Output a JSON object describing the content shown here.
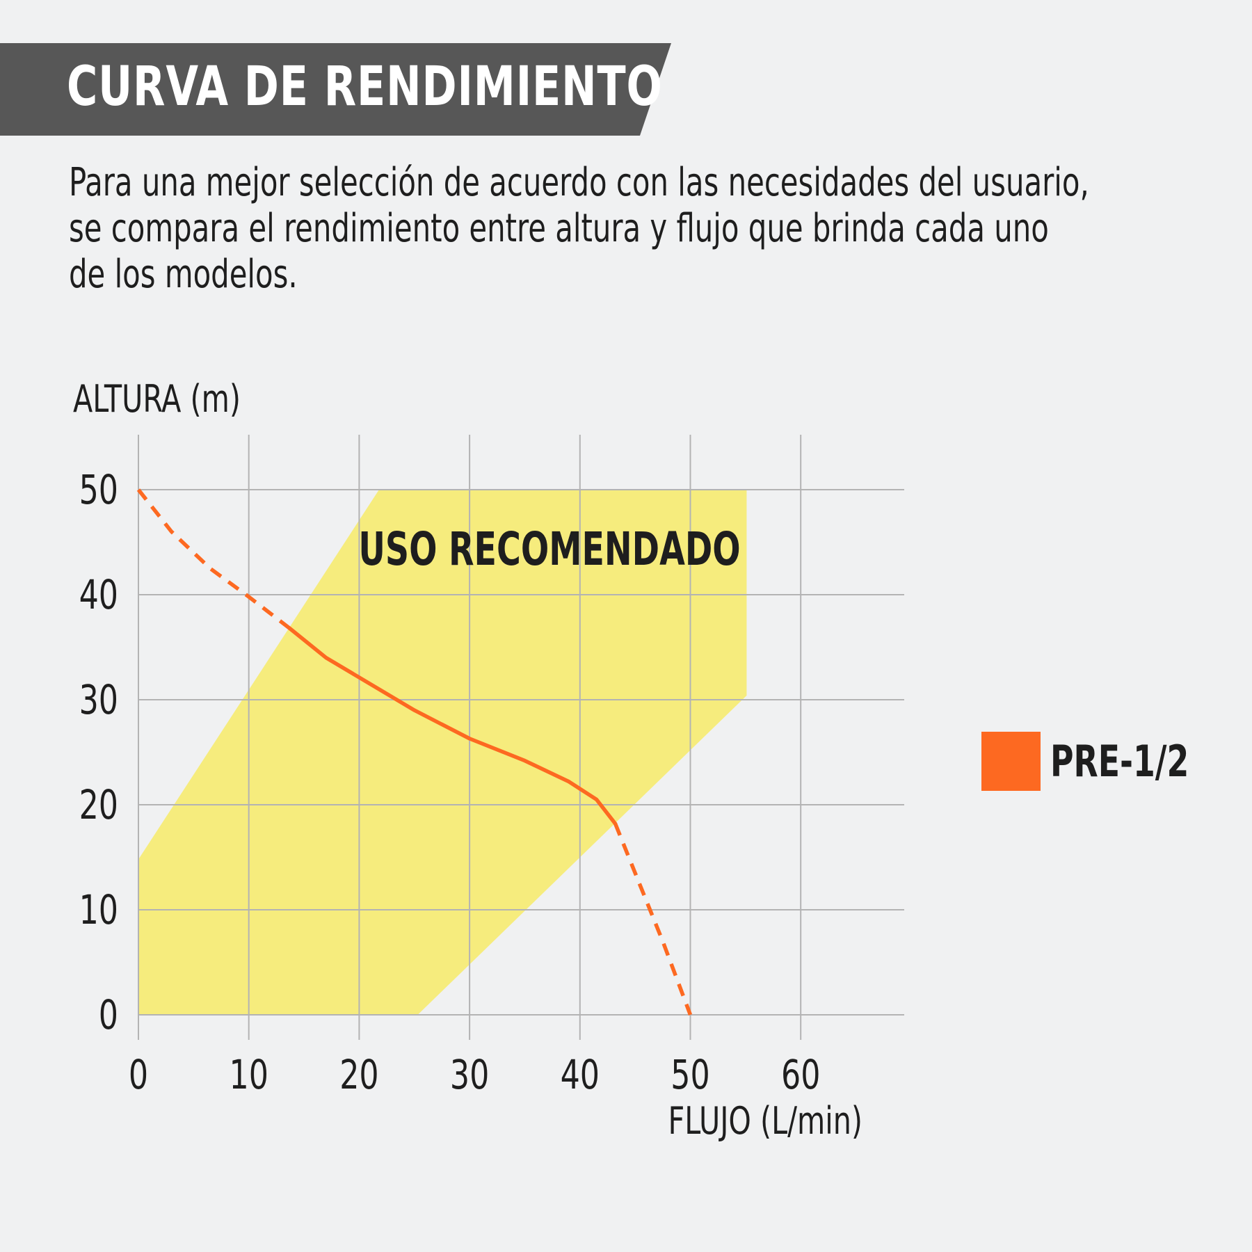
{
  "header": {
    "title": "CURVA DE RENDIMIENTO",
    "band_color": "#575757"
  },
  "description": [
    "Para una mejor selección de acuerdo con las necesidades del usuario,",
    "se compara el rendimiento entre altura y flujo que brinda cada uno",
    "de los modelos."
  ],
  "chart_data": {
    "type": "line",
    "xlabel": "FLUJO (L/min)",
    "ylabel": "ALTURA (m)",
    "xlim": [
      0,
      70
    ],
    "ylim": [
      0,
      55
    ],
    "x_ticks": [
      "0",
      "10",
      "20",
      "30",
      "40",
      "50",
      "60"
    ],
    "y_ticks": [
      "0",
      "10",
      "20",
      "30",
      "40",
      "50"
    ],
    "grid": true,
    "legend_position": "right",
    "region": {
      "label": "USO RECOMENDADO",
      "color": "#f6ec7d",
      "polygon": [
        [
          0,
          0
        ],
        [
          25.3,
          0
        ],
        [
          55.1,
          30.4
        ],
        [
          55.1,
          50
        ],
        [
          21.8,
          50
        ],
        [
          0,
          14.8
        ]
      ]
    },
    "series": [
      {
        "name": "PRE-1/2",
        "color": "#fd6921",
        "points": [
          {
            "x": 0,
            "y": 50
          },
          {
            "x": 3,
            "y": 46
          },
          {
            "x": 6.5,
            "y": 42.5
          },
          {
            "x": 10,
            "y": 39.8
          },
          {
            "x": 13.7,
            "y": 36.8
          },
          {
            "x": 17,
            "y": 34
          },
          {
            "x": 21,
            "y": 31.5
          },
          {
            "x": 25,
            "y": 29
          },
          {
            "x": 30,
            "y": 26.3
          },
          {
            "x": 35,
            "y": 24.2
          },
          {
            "x": 39,
            "y": 22.2
          },
          {
            "x": 41.5,
            "y": 20.5
          },
          {
            "x": 43.2,
            "y": 18.2
          },
          {
            "x": 45,
            "y": 13.5
          },
          {
            "x": 47.5,
            "y": 7
          },
          {
            "x": 50,
            "y": 0
          }
        ],
        "solid_x_range": [
          13.7,
          43.2
        ]
      }
    ]
  }
}
